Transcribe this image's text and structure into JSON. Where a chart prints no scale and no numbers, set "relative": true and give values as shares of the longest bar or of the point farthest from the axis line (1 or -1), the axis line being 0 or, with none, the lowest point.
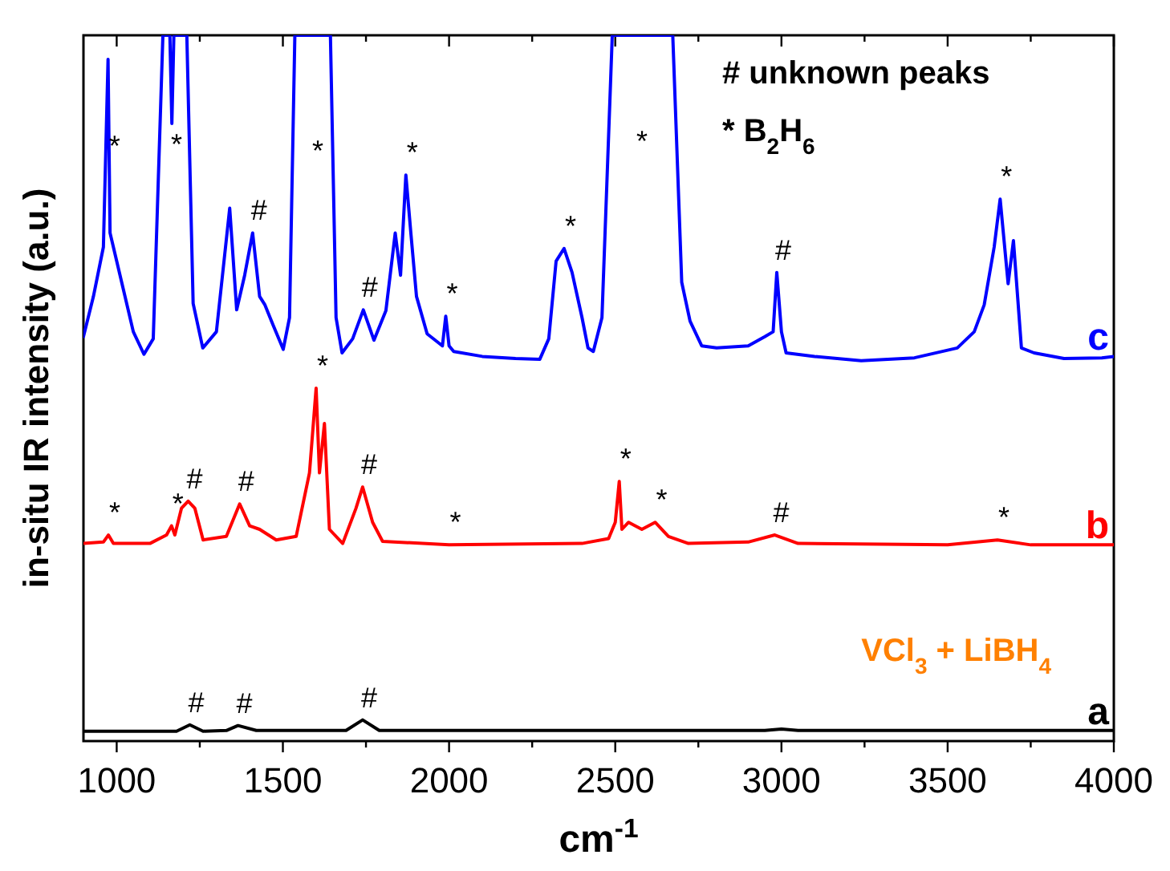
{
  "chart_data": {
    "type": "line",
    "relative": true,
    "xlabel": "cm$^{-1}$",
    "ylabel": "in-situ IR intensity (a.u.)",
    "xlim": [
      900,
      4000
    ],
    "xticks": [
      1000,
      {
        "value": 1250,
        "label": null
      },
      1500,
      {
        "value": 1750,
        "label": null
      },
      2000,
      {
        "value": 2250,
        "label": null
      },
      2500,
      {
        "value": 2750,
        "label": null
      },
      3000,
      {
        "value": 3250,
        "label": null
      },
      3500,
      {
        "value": 3750,
        "label": null
      },
      4000
    ],
    "grid": false,
    "line_style": "solid",
    "series": [
      {
        "name": "c",
        "color": "#0000ff",
        "x": [
          900,
          930,
          960,
          974,
          980,
          990,
          1020,
          1050,
          1082,
          1110,
          1139,
          1150,
          1160,
          1166,
          1172,
          1190,
          1211,
          1230,
          1259,
          1300,
          1340,
          1361,
          1385,
          1409,
          1430,
          1446,
          1470,
          1501,
          1520,
          1536,
          1600,
          1643,
          1660,
          1678,
          1710,
          1742,
          1774,
          1810,
          1838,
          1854,
          1870,
          1885,
          1902,
          1934,
          1980,
          1990,
          2000,
          2014,
          2100,
          2200,
          2273,
          2300,
          2322,
          2346,
          2370,
          2400,
          2418,
          2434,
          2460,
          2491,
          2600,
          2673,
          2700,
          2725,
          2760,
          2805,
          2900,
          2950,
          2975,
          2986,
          3000,
          3014,
          3100,
          3240,
          3400,
          3529,
          3580,
          3610,
          3640,
          3658,
          3682,
          3698,
          3722,
          3760,
          3850,
          3964,
          4000
        ],
        "values": [
          0.573,
          0.63,
          0.7,
          0.966,
          0.72,
          0.7,
          0.64,
          0.58,
          0.548,
          0.57,
          1,
          1,
          1,
          0.875,
          1,
          1,
          1,
          0.62,
          0.557,
          0.58,
          0.755,
          0.611,
          0.66,
          0.72,
          0.63,
          0.618,
          0.59,
          0.555,
          0.6,
          1,
          1,
          1,
          0.6,
          0.55,
          0.57,
          0.611,
          0.568,
          0.61,
          0.72,
          0.66,
          0.802,
          0.72,
          0.63,
          0.577,
          0.56,
          0.602,
          0.56,
          0.552,
          0.545,
          0.542,
          0.541,
          0.57,
          0.68,
          0.698,
          0.664,
          0.6,
          0.557,
          0.552,
          0.6,
          1,
          1,
          1,
          0.65,
          0.595,
          0.56,
          0.557,
          0.56,
          0.573,
          0.58,
          0.664,
          0.58,
          0.55,
          0.545,
          0.539,
          0.543,
          0.557,
          0.58,
          0.618,
          0.7,
          0.768,
          0.648,
          0.709,
          0.557,
          0.55,
          0.542,
          0.543,
          0.545
        ]
      },
      {
        "name": "b",
        "color": "#ff0000",
        "x": [
          900,
          960,
          975,
          990,
          1100,
          1150,
          1165,
          1175,
          1195,
          1215,
          1235,
          1260,
          1330,
          1370,
          1400,
          1430,
          1480,
          1540,
          1580,
          1600,
          1610,
          1625,
          1640,
          1680,
          1720,
          1740,
          1770,
          1800,
          2000,
          2400,
          2480,
          2500,
          2512,
          2520,
          2540,
          2580,
          2620,
          2660,
          2720,
          2900,
          2980,
          3050,
          3500,
          3650,
          3750,
          4000
        ],
        "values": [
          0.28,
          0.282,
          0.292,
          0.28,
          0.28,
          0.292,
          0.305,
          0.292,
          0.33,
          0.34,
          0.33,
          0.285,
          0.29,
          0.336,
          0.305,
          0.3,
          0.285,
          0.29,
          0.38,
          0.5,
          0.38,
          0.45,
          0.3,
          0.28,
          0.33,
          0.36,
          0.31,
          0.283,
          0.278,
          0.28,
          0.287,
          0.31,
          0.368,
          0.3,
          0.31,
          0.3,
          0.31,
          0.29,
          0.28,
          0.282,
          0.292,
          0.28,
          0.278,
          0.285,
          0.278,
          0.278
        ]
      },
      {
        "name": "a",
        "color": "#000000",
        "x": [
          900,
          1180,
          1220,
          1260,
          1330,
          1365,
          1420,
          1690,
          1740,
          1790,
          2950,
          3000,
          3050,
          4000
        ],
        "values": [
          0.014,
          0.014,
          0.023,
          0.014,
          0.015,
          0.022,
          0.015,
          0.015,
          0.03,
          0.015,
          0.015,
          0.017,
          0.015,
          0.015
        ]
      }
    ],
    "annotations": [
      "# unknown peaks",
      "* B$_{2}$H$_{6}$",
      "VCl$_{3}$ + LiBH$_{4}$",
      "*",
      "*",
      "*",
      {
        "text": "*",
        "x": 974,
        "y": 0.966
      },
      {
        "text": "#",
        "x": 1409,
        "y": 0.72
      },
      {
        "text": "#",
        "x": 1742,
        "y": 0.611
      },
      {
        "text": "*",
        "x": 1870,
        "y": 0.802
      },
      {
        "text": "*",
        "x": 1990,
        "y": 0.602
      },
      {
        "text": "*",
        "x": 2346,
        "y": 0.698
      },
      {
        "text": "#",
        "x": 2986,
        "y": 0.664
      },
      {
        "text": "*",
        "x": 3658,
        "y": 0.768
      },
      {
        "text": "*",
        "x": 975,
        "y": 0.292
      },
      {
        "text": "*",
        "x": 1165,
        "y": 0.305
      },
      {
        "text": "#",
        "x": 1215,
        "y": 0.34
      },
      {
        "text": "#",
        "x": 1370,
        "y": 0.336
      },
      {
        "text": "*",
        "x": 1600,
        "y": 0.5
      },
      {
        "text": "#",
        "x": 1740,
        "y": 0.36
      },
      {
        "text": "*",
        "x": 2000,
        "y": 0.278
      },
      {
        "text": "*",
        "x": 2512,
        "y": 0.368
      },
      {
        "text": "*",
        "x": 2620,
        "y": 0.31
      },
      {
        "text": "#",
        "x": 2980,
        "y": 0.292
      },
      {
        "text": "*",
        "x": 3650,
        "y": 0.285
      },
      {
        "text": "#",
        "x": 1220,
        "y": 0.023
      },
      {
        "text": "#",
        "x": 1365,
        "y": 0.022
      },
      {
        "text": "#",
        "x": 1740,
        "y": 0.03
      }
    ]
  }
}
